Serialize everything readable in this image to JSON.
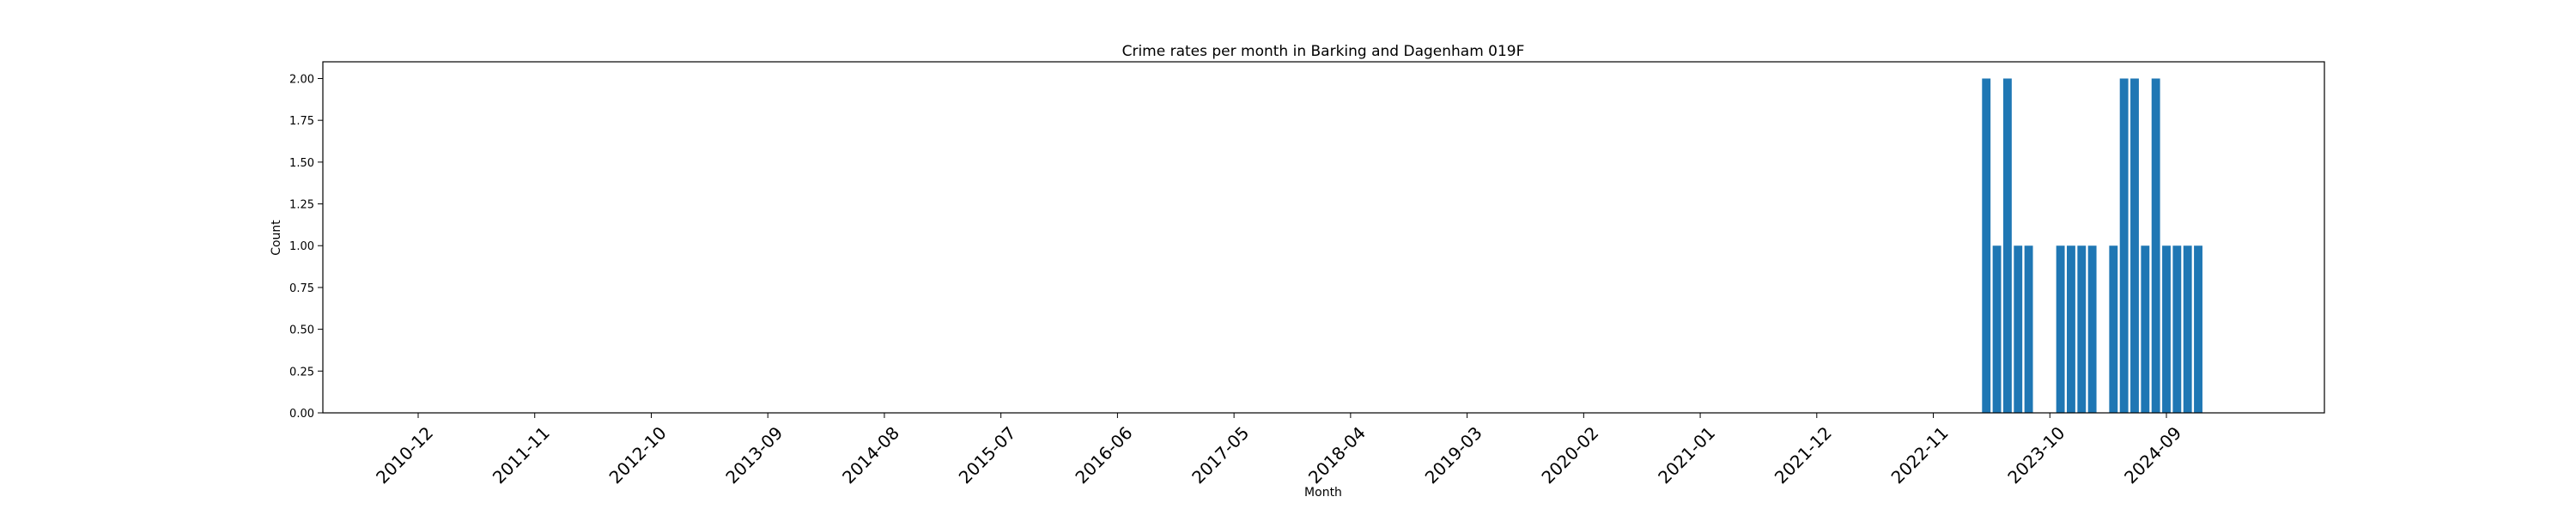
{
  "chart_data": {
    "type": "bar",
    "title": "Crime rates per month in Barking and Dagenham 019F",
    "xlabel": "Month",
    "ylabel": "Count",
    "ylim": [
      0,
      2.1
    ],
    "yticks": [
      "0.00",
      "0.25",
      "0.50",
      "0.75",
      "1.00",
      "1.25",
      "1.50",
      "1.75",
      "2.00"
    ],
    "ytick_values": [
      0,
      0.25,
      0.5,
      0.75,
      1.0,
      1.25,
      1.5,
      1.75,
      2.0
    ],
    "xticks": [
      "2010-12",
      "2011-11",
      "2012-10",
      "2013-09",
      "2014-08",
      "2015-07",
      "2016-06",
      "2017-05",
      "2018-04",
      "2019-03",
      "2020-02",
      "2021-01",
      "2021-12",
      "2022-11",
      "2023-10",
      "2024-09"
    ],
    "categories": [
      "2023-04",
      "2023-05",
      "2023-06",
      "2023-07",
      "2023-08",
      "2023-09",
      "2023-10",
      "2023-11",
      "2023-12",
      "2024-01",
      "2024-02",
      "2024-03",
      "2024-04",
      "2024-05",
      "2024-06",
      "2024-07",
      "2024-08",
      "2024-09",
      "2024-10",
      "2024-11",
      "2024-12"
    ],
    "values": [
      2,
      1,
      2,
      1,
      1,
      0,
      0,
      1,
      1,
      1,
      1,
      0,
      1,
      2,
      2,
      1,
      2,
      1,
      1,
      1,
      1
    ],
    "color": "#1f77b4",
    "grid": false
  }
}
